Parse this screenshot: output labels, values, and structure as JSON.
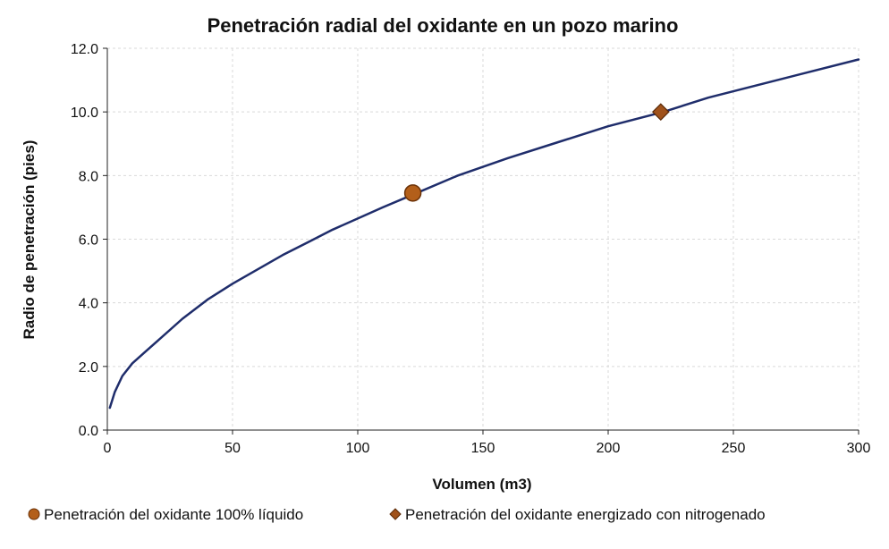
{
  "chart_data": {
    "type": "line",
    "title": "Penetración radial del oxidante en un pozo marino",
    "xlabel": "Volumen (m3)",
    "ylabel": "Radio de penetración (pies)",
    "xlim": [
      0,
      300
    ],
    "ylim": [
      0,
      12
    ],
    "x_ticks": [
      "0",
      "50",
      "100",
      "150",
      "200",
      "250",
      "300"
    ],
    "y_ticks": [
      "0.0",
      "2.0",
      "4.0",
      "6.0",
      "8.0",
      "10.0",
      "12.0"
    ],
    "grid": true,
    "legend_position": "bottom",
    "series": [
      {
        "type": "line",
        "color": "#1f2d6b",
        "x": [
          1,
          3,
          6,
          10,
          15,
          20,
          30,
          40,
          50,
          60,
          70,
          80,
          90,
          100,
          110,
          122,
          140,
          160,
          180,
          200,
          222,
          240,
          260,
          280,
          300
        ],
        "y": [
          0.7,
          1.2,
          1.7,
          2.1,
          2.45,
          2.8,
          3.5,
          4.1,
          4.6,
          5.05,
          5.5,
          5.9,
          6.3,
          6.65,
          7.0,
          7.4,
          8.0,
          8.55,
          9.05,
          9.55,
          10.0,
          10.45,
          10.85,
          11.25,
          11.65
        ]
      },
      {
        "name": "Penetración del oxidante 100% líquido",
        "type": "scatter",
        "marker": "circle",
        "color": "#b35f1a",
        "x": [
          122
        ],
        "y": [
          7.45
        ]
      },
      {
        "name": "Penetración del oxidante energizado con nitrogenado",
        "type": "scatter",
        "marker": "diamond",
        "color": "#a0521b",
        "x": [
          221
        ],
        "y": [
          10.0
        ]
      }
    ]
  }
}
